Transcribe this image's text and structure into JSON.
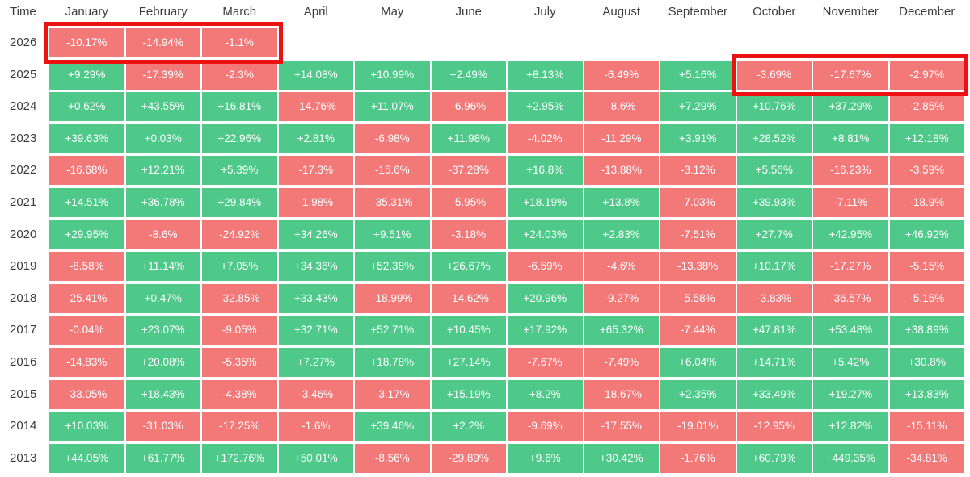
{
  "table": {
    "time_label": "Time",
    "months": [
      "January",
      "February",
      "March",
      "April",
      "May",
      "June",
      "July",
      "August",
      "September",
      "October",
      "November",
      "December"
    ],
    "rows": [
      {
        "year": "2026",
        "values": [
          "-10.17%",
          "-14.94%",
          "-1.1%",
          "",
          "",
          "",
          "",
          "",
          "",
          "",
          "",
          ""
        ]
      },
      {
        "year": "2025",
        "values": [
          "+9.29%",
          "-17.39%",
          "-2.3%",
          "+14.08%",
          "+10.99%",
          "+2.49%",
          "+8.13%",
          "-6.49%",
          "+5.16%",
          "-3.69%",
          "-17.67%",
          "-2.97%"
        ]
      },
      {
        "year": "2024",
        "values": [
          "+0.62%",
          "+43.55%",
          "+16.81%",
          "-14.76%",
          "+11.07%",
          "-6.96%",
          "+2.95%",
          "-8.6%",
          "+7.29%",
          "+10.76%",
          "+37.29%",
          "-2.85%"
        ]
      },
      {
        "year": "2023",
        "values": [
          "+39.63%",
          "+0.03%",
          "+22.96%",
          "+2.81%",
          "-6.98%",
          "+11.98%",
          "-4.02%",
          "-11.29%",
          "+3.91%",
          "+28.52%",
          "+8.81%",
          "+12.18%"
        ]
      },
      {
        "year": "2022",
        "values": [
          "-16.68%",
          "+12.21%",
          "+5.39%",
          "-17.3%",
          "-15.6%",
          "-37.28%",
          "+16.8%",
          "-13.88%",
          "-3.12%",
          "+5.56%",
          "-16.23%",
          "-3.59%"
        ]
      },
      {
        "year": "2021",
        "values": [
          "+14.51%",
          "+36.78%",
          "+29.84%",
          "-1.98%",
          "-35.31%",
          "-5.95%",
          "+18.19%",
          "+13.8%",
          "-7.03%",
          "+39.93%",
          "-7.11%",
          "-18.9%"
        ]
      },
      {
        "year": "2020",
        "values": [
          "+29.95%",
          "-8.6%",
          "-24.92%",
          "+34.26%",
          "+9.51%",
          "-3.18%",
          "+24.03%",
          "+2.83%",
          "-7.51%",
          "+27.7%",
          "+42.95%",
          "+46.92%"
        ]
      },
      {
        "year": "2019",
        "values": [
          "-8.58%",
          "+11.14%",
          "+7.05%",
          "+34.36%",
          "+52.38%",
          "+26.67%",
          "-6.59%",
          "-4.6%",
          "-13.38%",
          "+10.17%",
          "-17.27%",
          "-5.15%"
        ]
      },
      {
        "year": "2018",
        "values": [
          "-25.41%",
          "+0.47%",
          "-32.85%",
          "+33.43%",
          "-18.99%",
          "-14.62%",
          "+20.96%",
          "-9.27%",
          "-5.58%",
          "-3.83%",
          "-36.57%",
          "-5.15%"
        ]
      },
      {
        "year": "2017",
        "values": [
          "-0.04%",
          "+23.07%",
          "-9.05%",
          "+32.71%",
          "+52.71%",
          "+10.45%",
          "+17.92%",
          "+65.32%",
          "-7.44%",
          "+47.81%",
          "+53.48%",
          "+38.89%"
        ]
      },
      {
        "year": "2016",
        "values": [
          "-14.83%",
          "+20.08%",
          "-5.35%",
          "+7.27%",
          "+18.78%",
          "+27.14%",
          "-7.67%",
          "-7.49%",
          "+6.04%",
          "+14.71%",
          "+5.42%",
          "+30.8%"
        ]
      },
      {
        "year": "2015",
        "values": [
          "-33.05%",
          "+18.43%",
          "-4.38%",
          "-3.46%",
          "-3.17%",
          "+15.19%",
          "+8.2%",
          "-18.67%",
          "+2.35%",
          "+33.49%",
          "+19.27%",
          "+13.83%"
        ]
      },
      {
        "year": "2014",
        "values": [
          "+10.03%",
          "-31.03%",
          "-17.25%",
          "-1.6%",
          "+39.46%",
          "+2.2%",
          "-9.69%",
          "-17.55%",
          "-19.01%",
          "-12.95%",
          "+12.82%",
          "-15.11%"
        ]
      },
      {
        "year": "2013",
        "values": [
          "+44.05%",
          "+61.77%",
          "+172.76%",
          "+50.01%",
          "-8.56%",
          "-29.89%",
          "+9.6%",
          "+30.42%",
          "-1.76%",
          "+60.79%",
          "+449.35%",
          "-34.81%"
        ]
      }
    ]
  },
  "highlights": [
    {
      "year": "2026",
      "months": [
        "January",
        "February",
        "March"
      ]
    },
    {
      "year": "2025",
      "months": [
        "October",
        "November",
        "December"
      ]
    }
  ],
  "colors": {
    "positive": "#4fc98a",
    "negative": "#f37878",
    "highlight_border": "#ee1111",
    "text": "#3b3b3b"
  }
}
